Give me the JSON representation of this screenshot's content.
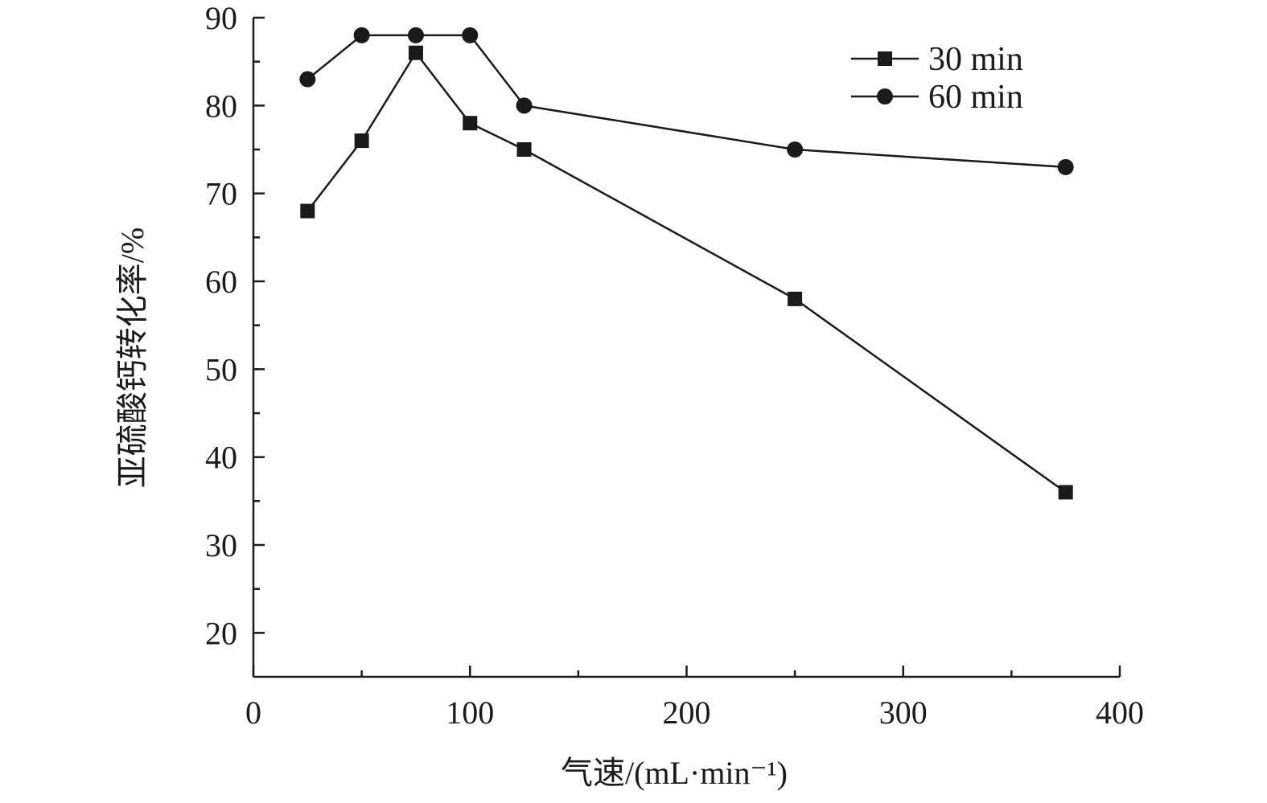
{
  "chart_data": {
    "type": "line",
    "xlabel": "气速/(mL·min⁻¹)",
    "ylabel": "亚硫酸钙转化率/%",
    "xlim": [
      0,
      400
    ],
    "ylim": [
      15,
      90
    ],
    "x_ticks": [
      0,
      100,
      200,
      300,
      400
    ],
    "y_ticks": [
      20,
      30,
      40,
      50,
      60,
      70,
      80,
      90
    ],
    "grid": false,
    "legend_position": "top-right",
    "series": [
      {
        "name": "30 min",
        "marker": "square",
        "x": [
          25,
          50,
          75,
          100,
          125,
          250,
          375
        ],
        "values": [
          68,
          76,
          86,
          78,
          75,
          58,
          36
        ]
      },
      {
        "name": "60 min",
        "marker": "circle",
        "x": [
          25,
          50,
          75,
          100,
          125,
          250,
          375
        ],
        "values": [
          83,
          88,
          88,
          88,
          80,
          75,
          73
        ]
      }
    ],
    "colors": {
      "line": "#1a1a1a",
      "background": "#ffffff"
    }
  }
}
